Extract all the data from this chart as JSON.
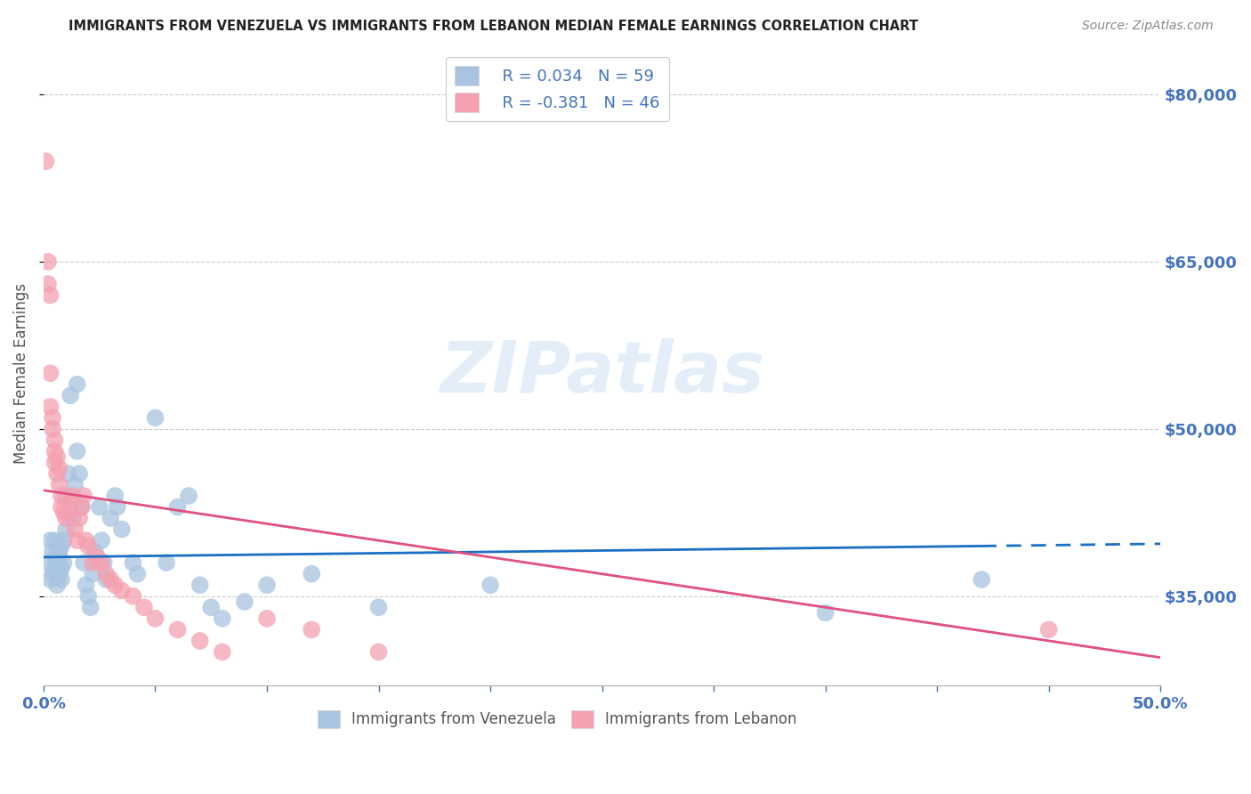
{
  "title": "IMMIGRANTS FROM VENEZUELA VS IMMIGRANTS FROM LEBANON MEDIAN FEMALE EARNINGS CORRELATION CHART",
  "source": "Source: ZipAtlas.com",
  "ylabel": "Median Female Earnings",
  "xlim": [
    0.0,
    0.5
  ],
  "ylim": [
    27000,
    83000
  ],
  "yticks": [
    35000,
    50000,
    65000,
    80000
  ],
  "ytick_labels": [
    "$35,000",
    "$50,000",
    "$65,000",
    "$80,000"
  ],
  "xticks": [
    0.0,
    0.05,
    0.1,
    0.15,
    0.2,
    0.25,
    0.3,
    0.35,
    0.4,
    0.45,
    0.5
  ],
  "xtick_show": [
    0.0,
    0.5
  ],
  "xtick_labels_show": [
    "0.0%",
    "50.0%"
  ],
  "venezuela_color": "#a8c4e0",
  "lebanon_color": "#f4a0b0",
  "trend_venezuela_color": "#1a6fc4",
  "trend_lebanon_color": "#e05080",
  "R_venezuela": 0.034,
  "N_venezuela": 59,
  "R_lebanon": -0.381,
  "N_lebanon": 46,
  "legend_venezuela": "Immigrants from Venezuela",
  "legend_lebanon": "Immigrants from Lebanon",
  "background_color": "#ffffff",
  "grid_color": "#cccccc",
  "axis_label_color": "#4472c4",
  "title_color": "#222222",
  "source_color": "#888888",
  "venezuela_x": [
    0.002,
    0.003,
    0.003,
    0.004,
    0.004,
    0.005,
    0.005,
    0.005,
    0.006,
    0.006,
    0.006,
    0.007,
    0.007,
    0.007,
    0.008,
    0.008,
    0.008,
    0.009,
    0.009,
    0.01,
    0.01,
    0.011,
    0.012,
    0.013,
    0.014,
    0.015,
    0.015,
    0.016,
    0.017,
    0.018,
    0.019,
    0.02,
    0.021,
    0.022,
    0.023,
    0.025,
    0.026,
    0.027,
    0.028,
    0.03,
    0.032,
    0.033,
    0.035,
    0.04,
    0.042,
    0.05,
    0.055,
    0.06,
    0.065,
    0.07,
    0.075,
    0.08,
    0.09,
    0.1,
    0.12,
    0.15,
    0.2,
    0.35,
    0.42
  ],
  "venezuela_y": [
    38000,
    36500,
    40000,
    37000,
    39000,
    37500,
    38500,
    40000,
    36000,
    37000,
    38000,
    39000,
    37000,
    38500,
    36500,
    37500,
    39500,
    38000,
    40000,
    41000,
    44000,
    46000,
    53000,
    42000,
    45000,
    48000,
    54000,
    46000,
    43000,
    38000,
    36000,
    35000,
    34000,
    37000,
    39000,
    43000,
    40000,
    38000,
    36500,
    42000,
    44000,
    43000,
    41000,
    38000,
    37000,
    51000,
    38000,
    43000,
    44000,
    36000,
    34000,
    33000,
    34500,
    36000,
    37000,
    34000,
    36000,
    33500,
    36500
  ],
  "lebanon_x": [
    0.001,
    0.002,
    0.002,
    0.003,
    0.003,
    0.003,
    0.004,
    0.004,
    0.005,
    0.005,
    0.005,
    0.006,
    0.006,
    0.007,
    0.007,
    0.008,
    0.008,
    0.009,
    0.01,
    0.011,
    0.012,
    0.013,
    0.014,
    0.015,
    0.016,
    0.017,
    0.018,
    0.019,
    0.02,
    0.022,
    0.024,
    0.026,
    0.028,
    0.03,
    0.032,
    0.035,
    0.04,
    0.045,
    0.05,
    0.06,
    0.07,
    0.08,
    0.1,
    0.12,
    0.15,
    0.45
  ],
  "lebanon_y": [
    74000,
    65000,
    63000,
    62000,
    55000,
    52000,
    51000,
    50000,
    49000,
    48000,
    47000,
    47500,
    46000,
    46500,
    45000,
    44000,
    43000,
    42500,
    42000,
    42500,
    43500,
    44000,
    41000,
    40000,
    42000,
    43000,
    44000,
    40000,
    39500,
    38000,
    38500,
    38000,
    37000,
    36500,
    36000,
    35500,
    35000,
    34000,
    33000,
    32000,
    31000,
    30000,
    33000,
    32000,
    30000,
    32000
  ],
  "trend_ven_x0": 0.0,
  "trend_ven_y0": 38500,
  "trend_ven_x1": 0.42,
  "trend_ven_y1": 39500,
  "trend_ven_dash_x0": 0.42,
  "trend_ven_dash_y0": 39500,
  "trend_ven_dash_x1": 0.5,
  "trend_ven_dash_y1": 39700,
  "trend_leb_x0": 0.0,
  "trend_leb_y0": 44500,
  "trend_leb_x1": 0.5,
  "trend_leb_y1": 29500
}
